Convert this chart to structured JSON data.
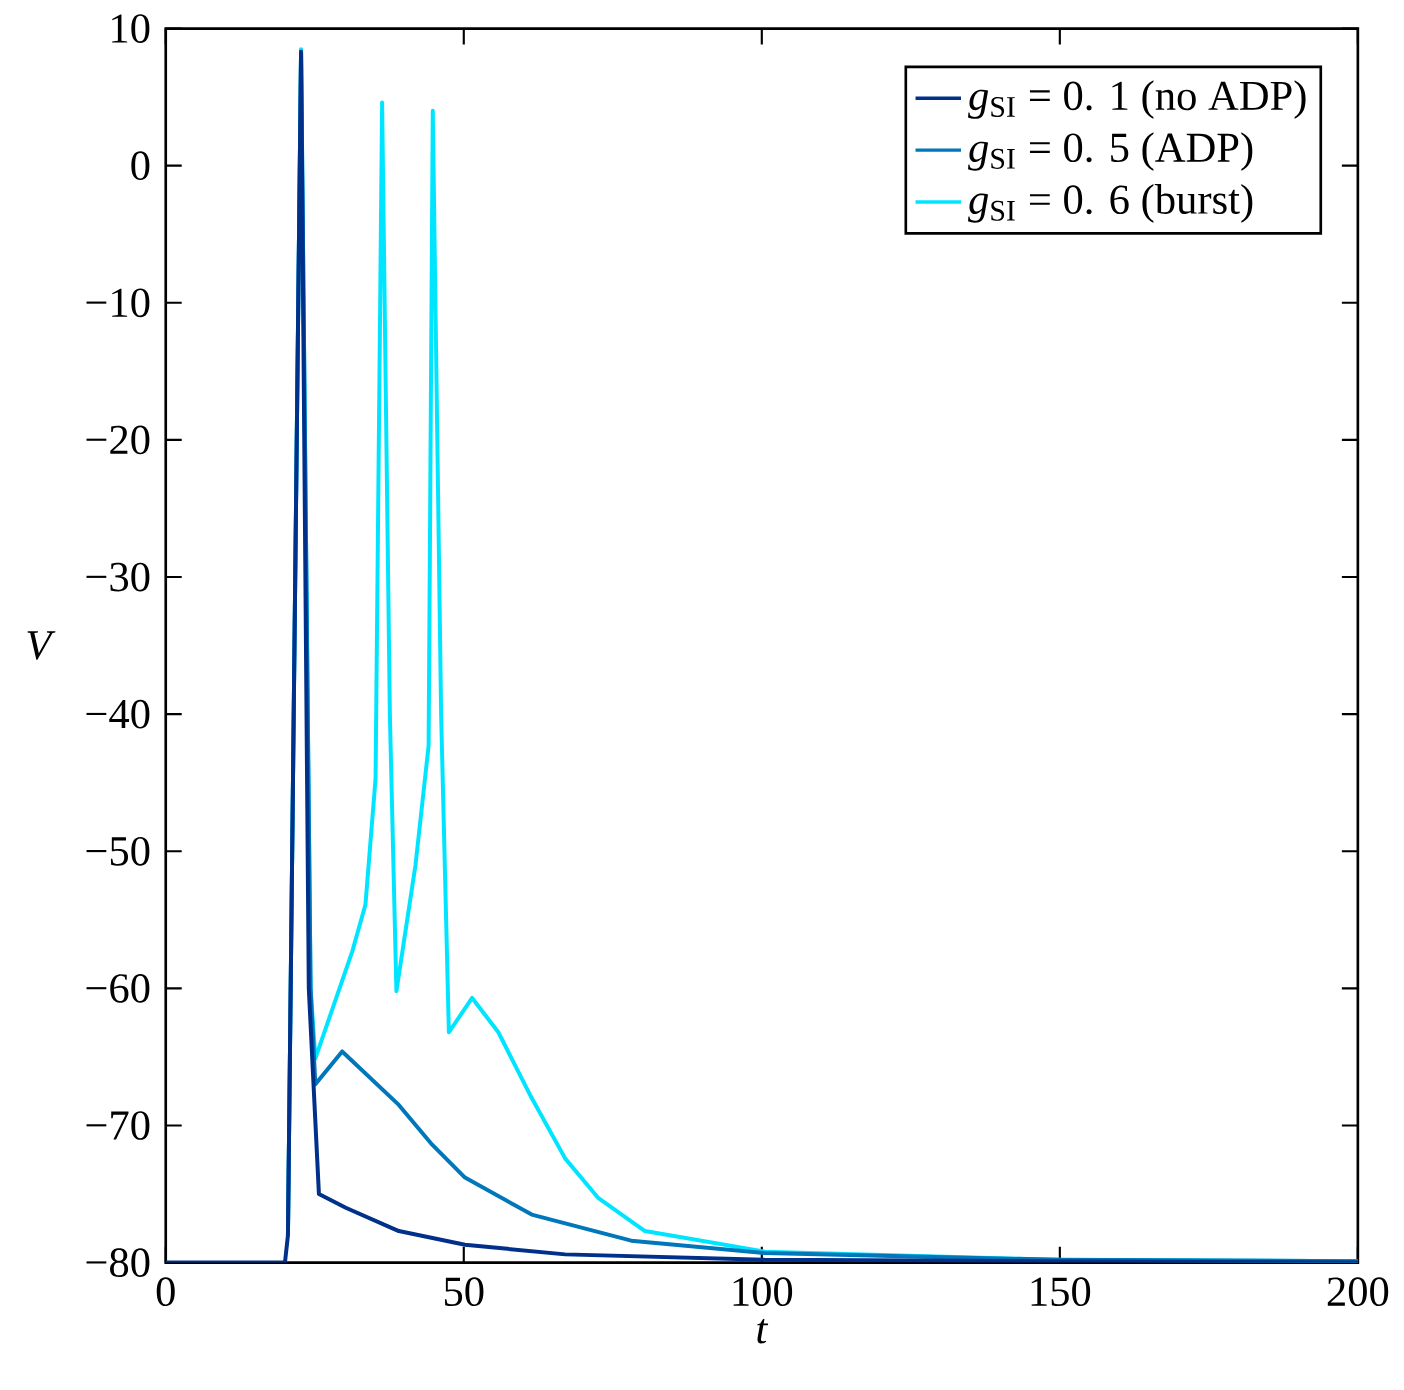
{
  "chart_data": {
    "type": "line",
    "xlabel": "*t*",
    "ylabel": "*V*",
    "xlim": [
      0,
      200
    ],
    "ylim": [
      -80,
      10
    ],
    "xticks": [
      0,
      50,
      100,
      150,
      200
    ],
    "yticks": [
      {
        "value": -80,
        "label": "−80"
      },
      {
        "value": -70,
        "label": "−70"
      },
      {
        "value": -60,
        "label": "−60"
      },
      {
        "value": -50,
        "label": "−50"
      },
      {
        "value": -40,
        "label": "−40"
      },
      {
        "value": -30,
        "label": "−30"
      },
      {
        "value": -20,
        "label": "−20"
      },
      {
        "value": -10,
        "label": "−10"
      },
      {
        "value": 0,
        "label": "0"
      },
      {
        "value": 10,
        "label": "10"
      }
    ],
    "legend": "top right",
    "grid": false,
    "marker": "none",
    "line_style": "solid",
    "series": [
      {
        "name": "*g*$_{SI}$ = 0. 1 (no ADP)",
        "color": "#00308a",
        "x": [
          0,
          20,
          20.5,
          22.7,
          24,
          25.7,
          30.2,
          39.1,
          50.2,
          67,
          100.5,
          150,
          200
        ],
        "values": [
          -80,
          -80,
          -78,
          8.3,
          -60,
          -75.0,
          -76.0,
          -77.7,
          -78.7,
          -79.4,
          -79.8,
          -79.9,
          -80
        ]
      },
      {
        "name": "*g*$_{SI}$ = 0. 5 (ADP)",
        "color": "#0077bb",
        "x": [
          20.5,
          22.7,
          24.3,
          25.1,
          29.6,
          39.1,
          44.7,
          50.2,
          61.4,
          78.1,
          100.5,
          150,
          200
        ],
        "values": [
          -78,
          8.3,
          -60,
          -67.0,
          -64.6,
          -68.5,
          -71.4,
          -73.8,
          -76.5,
          -78.4,
          -79.3,
          -79.8,
          -79.9
        ]
      },
      {
        "name": "*g*$_{SI}$ = 0. 6 (burst)",
        "color": "#00e5ff",
        "x": [
          20.5,
          22.7,
          24.3,
          25.1,
          31.3,
          33.5,
          35.2,
          36.3,
          37.6,
          38.7,
          41.9,
          44.1,
          44.8,
          46.2,
          47.5,
          51.4,
          55.8,
          61.4,
          67,
          72.6,
          80.4,
          100.5,
          150,
          200
        ],
        "values": [
          -78,
          8.5,
          -60,
          -65.1,
          -57.3,
          -53.9,
          -44.7,
          4.6,
          -40,
          -60.2,
          -51,
          -42.3,
          4,
          -40,
          -63.2,
          -60.7,
          -63.2,
          -68,
          -72.4,
          -75.3,
          -77.7,
          -79.2,
          -79.8,
          -79.9
        ]
      }
    ]
  }
}
